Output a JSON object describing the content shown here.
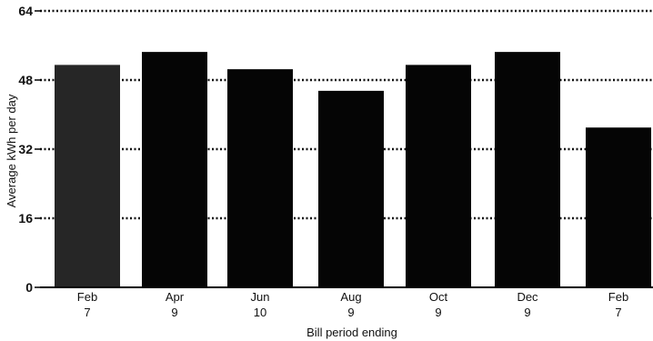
{
  "chart_data": {
    "type": "bar",
    "title": "",
    "xlabel": "Bill period ending",
    "ylabel": "Average kWh per day",
    "ylim": [
      0,
      64
    ],
    "yticks": [
      "0",
      "16",
      "32",
      "48",
      "64"
    ],
    "grid": true,
    "categories": [
      {
        "month": "Feb",
        "day": "7"
      },
      {
        "month": "Apr",
        "day": "9"
      },
      {
        "month": "Jun",
        "day": "10"
      },
      {
        "month": "Aug",
        "day": "9"
      },
      {
        "month": "Oct",
        "day": "9"
      },
      {
        "month": "Dec",
        "day": "9"
      },
      {
        "month": "Feb",
        "day": "7"
      }
    ],
    "values": [
      51.5,
      54.5,
      50.5,
      45.5,
      51.5,
      54.5,
      37
    ],
    "bar_color": "#050505",
    "first_bar_color": "#262626"
  }
}
